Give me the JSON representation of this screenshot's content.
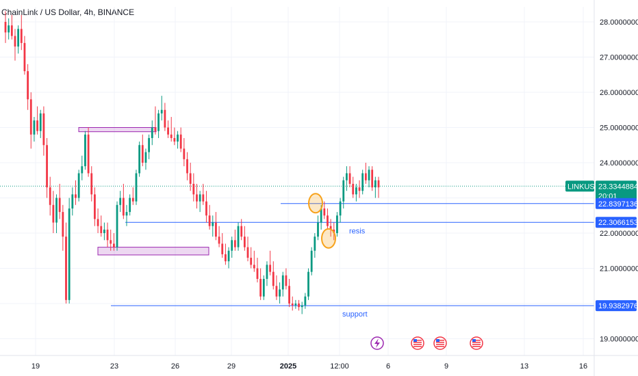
{
  "chart_data": {
    "type": "candlestick",
    "title": "ChainLink / US Dollar, 4h, BINANCE",
    "symbol": "LINKUSD",
    "current_price": "23.3344884",
    "countdown": "20:01",
    "y_ticks": [
      "28.0000000",
      "27.0000000",
      "26.0000000",
      "25.0000000",
      "24.0000000",
      "22.0000000",
      "21.0000000",
      "19.0000000"
    ],
    "y_tick_values": [
      28,
      27,
      26,
      25,
      24,
      22,
      21,
      19
    ],
    "ylim": [
      18.7,
      28.3
    ],
    "x_ticks": [
      "19",
      "23",
      "26",
      "29",
      "2025",
      "12:00",
      "6",
      "9",
      "13",
      "16"
    ],
    "levels": [
      {
        "label": "22.8397136",
        "value": 22.8397136,
        "color": "#2962ff"
      },
      {
        "label": "22.3066153",
        "value": 22.3066153,
        "color": "#2962ff"
      },
      {
        "label": "19.9382976",
        "value": 19.9382976,
        "color": "#2962ff"
      }
    ],
    "annotations": [
      {
        "text": "resis",
        "color": "#2962ff"
      },
      {
        "text": "support",
        "color": "#2962ff"
      }
    ],
    "zones": [
      {
        "name": "upper-zone",
        "y_top": 25.0,
        "y_bottom": 24.88
      },
      {
        "name": "lower-zone",
        "y_top": 21.6,
        "y_bottom": 21.38
      }
    ],
    "colors": {
      "up": "#089981",
      "down": "#f23645",
      "level": "#2962ff",
      "zone": "#9c27b0",
      "marker": "#f7a21b",
      "price_tag": "#089981"
    },
    "candles_ohlc": [
      [
        28.0,
        28.3,
        27.4,
        27.7
      ],
      [
        27.7,
        28.1,
        27.5,
        27.9
      ],
      [
        27.9,
        28.2,
        27.5,
        27.6
      ],
      [
        27.6,
        27.8,
        26.9,
        27.3
      ],
      [
        27.3,
        27.9,
        27.1,
        27.8
      ],
      [
        27.8,
        28.2,
        27.2,
        27.4
      ],
      [
        27.4,
        27.6,
        26.5,
        26.6
      ],
      [
        26.6,
        26.8,
        25.5,
        25.8
      ],
      [
        25.8,
        26.0,
        24.4,
        24.8
      ],
      [
        24.8,
        25.3,
        24.6,
        25.2
      ],
      [
        25.2,
        25.6,
        24.8,
        24.9
      ],
      [
        24.9,
        25.5,
        24.7,
        25.4
      ],
      [
        25.4,
        25.6,
        24.2,
        24.5
      ],
      [
        24.5,
        24.7,
        23.0,
        23.3
      ],
      [
        23.3,
        23.6,
        22.5,
        22.8
      ],
      [
        22.8,
        23.2,
        22.0,
        22.3
      ],
      [
        22.3,
        23.1,
        22.0,
        23.0
      ],
      [
        23.0,
        23.4,
        22.4,
        22.6
      ],
      [
        22.6,
        22.8,
        21.5,
        21.9
      ],
      [
        21.9,
        22.3,
        20.0,
        20.1
      ],
      [
        20.1,
        23.0,
        20.0,
        22.7
      ],
      [
        22.7,
        23.3,
        22.5,
        23.1
      ],
      [
        23.1,
        23.5,
        22.8,
        23.0
      ],
      [
        23.0,
        23.8,
        22.9,
        23.7
      ],
      [
        23.7,
        24.2,
        23.5,
        23.9
      ],
      [
        23.9,
        24.9,
        23.8,
        24.8
      ],
      [
        24.8,
        25.0,
        23.6,
        23.7
      ],
      [
        23.7,
        23.9,
        22.9,
        23.1
      ],
      [
        23.1,
        23.3,
        22.2,
        22.4
      ],
      [
        22.4,
        22.7,
        22.0,
        22.2
      ],
      [
        22.2,
        22.5,
        21.9,
        22.0
      ],
      [
        22.0,
        22.3,
        21.8,
        22.1
      ],
      [
        22.1,
        22.3,
        21.6,
        21.8
      ],
      [
        21.8,
        22.1,
        21.5,
        21.7
      ],
      [
        21.7,
        22.0,
        21.5,
        21.6
      ],
      [
        21.6,
        22.9,
        21.5,
        22.8
      ],
      [
        22.8,
        23.2,
        22.6,
        23.0
      ],
      [
        23.0,
        23.4,
        22.4,
        22.5
      ],
      [
        22.5,
        22.8,
        22.2,
        22.6
      ],
      [
        22.6,
        23.1,
        22.5,
        23.0
      ],
      [
        23.0,
        23.3,
        22.8,
        22.9
      ],
      [
        22.9,
        23.8,
        22.8,
        23.7
      ],
      [
        23.7,
        24.6,
        23.6,
        24.5
      ],
      [
        24.5,
        24.8,
        23.9,
        24.0
      ],
      [
        24.0,
        24.4,
        23.8,
        24.3
      ],
      [
        24.3,
        24.8,
        24.1,
        24.7
      ],
      [
        24.7,
        25.2,
        24.5,
        25.0
      ],
      [
        25.0,
        25.6,
        24.8,
        24.9
      ],
      [
        24.9,
        25.5,
        24.7,
        25.4
      ],
      [
        25.4,
        25.9,
        25.2,
        25.5
      ],
      [
        25.5,
        25.7,
        24.9,
        25.0
      ],
      [
        25.0,
        25.2,
        24.7,
        24.8
      ],
      [
        24.8,
        25.3,
        24.6,
        24.7
      ],
      [
        24.7,
        25.0,
        24.5,
        24.6
      ],
      [
        24.6,
        24.9,
        24.4,
        24.8
      ],
      [
        24.8,
        25.0,
        24.3,
        24.4
      ],
      [
        24.4,
        24.7,
        23.9,
        24.1
      ],
      [
        24.1,
        24.3,
        23.5,
        23.7
      ],
      [
        23.7,
        24.0,
        23.2,
        23.4
      ],
      [
        23.4,
        23.7,
        22.9,
        23.1
      ],
      [
        23.1,
        23.4,
        22.7,
        22.9
      ],
      [
        22.9,
        23.2,
        22.6,
        23.1
      ],
      [
        23.1,
        23.4,
        22.8,
        22.9
      ],
      [
        22.9,
        23.2,
        22.3,
        22.5
      ],
      [
        22.5,
        22.8,
        22.1,
        22.2
      ],
      [
        22.2,
        22.5,
        21.9,
        22.3
      ],
      [
        22.3,
        22.6,
        21.8,
        21.9
      ],
      [
        21.9,
        22.2,
        21.6,
        21.7
      ],
      [
        21.7,
        22.0,
        21.3,
        21.4
      ],
      [
        21.4,
        21.7,
        21.1,
        21.2
      ],
      [
        21.2,
        21.6,
        21.0,
        21.5
      ],
      [
        21.5,
        21.9,
        21.3,
        21.8
      ],
      [
        21.8,
        22.1,
        21.5,
        21.6
      ],
      [
        21.6,
        22.3,
        21.5,
        22.2
      ],
      [
        22.2,
        22.4,
        21.8,
        21.9
      ],
      [
        21.9,
        22.2,
        21.5,
        21.6
      ],
      [
        21.6,
        21.9,
        21.2,
        21.3
      ],
      [
        21.3,
        21.6,
        21.0,
        21.1
      ],
      [
        21.1,
        21.5,
        20.9,
        21.0
      ],
      [
        21.0,
        21.3,
        20.6,
        20.7
      ],
      [
        20.7,
        21.0,
        20.1,
        20.2
      ],
      [
        20.2,
        20.8,
        20.1,
        20.7
      ],
      [
        20.7,
        21.2,
        20.5,
        21.1
      ],
      [
        21.1,
        21.5,
        20.8,
        20.9
      ],
      [
        20.9,
        21.2,
        20.4,
        20.5
      ],
      [
        20.5,
        20.8,
        20.1,
        20.2
      ],
      [
        20.2,
        20.6,
        20.0,
        20.4
      ],
      [
        20.4,
        20.9,
        20.2,
        20.8
      ],
      [
        20.8,
        21.0,
        20.4,
        20.5
      ],
      [
        20.5,
        20.7,
        19.9,
        20.0
      ],
      [
        20.0,
        20.2,
        19.8,
        19.95
      ],
      [
        19.95,
        20.1,
        19.85,
        20.0
      ],
      [
        20.0,
        20.1,
        19.8,
        19.9
      ],
      [
        19.9,
        20.05,
        19.7,
        19.95
      ],
      [
        19.95,
        20.3,
        19.85,
        20.2
      ],
      [
        20.2,
        21.0,
        20.1,
        20.9
      ],
      [
        20.9,
        21.6,
        20.8,
        21.5
      ],
      [
        21.5,
        22.0,
        21.3,
        21.9
      ],
      [
        21.9,
        22.5,
        21.8,
        22.3
      ],
      [
        22.3,
        22.8,
        22.1,
        22.7
      ],
      [
        22.7,
        22.9,
        22.4,
        22.5
      ],
      [
        22.5,
        22.7,
        22.1,
        22.2
      ],
      [
        22.2,
        22.4,
        21.9,
        22.1
      ],
      [
        22.1,
        22.3,
        21.8,
        22.0
      ],
      [
        22.0,
        22.6,
        21.9,
        22.5
      ],
      [
        22.5,
        23.0,
        22.3,
        22.9
      ],
      [
        22.9,
        23.6,
        22.7,
        23.5
      ],
      [
        23.5,
        23.9,
        23.2,
        23.7
      ],
      [
        23.7,
        23.9,
        23.3,
        23.4
      ],
      [
        23.4,
        23.6,
        23.0,
        23.1
      ],
      [
        23.1,
        23.4,
        22.9,
        23.3
      ],
      [
        23.3,
        23.5,
        23.0,
        23.2
      ],
      [
        23.2,
        23.8,
        23.1,
        23.7
      ],
      [
        23.7,
        24.0,
        23.4,
        23.5
      ],
      [
        23.5,
        23.9,
        23.3,
        23.8
      ],
      [
        23.8,
        23.9,
        23.2,
        23.3
      ],
      [
        23.3,
        23.6,
        23.0,
        23.5
      ],
      [
        23.5,
        23.6,
        23.0,
        23.3
      ]
    ]
  },
  "header": {
    "title": "ChainLink / US Dollar, 4h, BINANCE"
  }
}
